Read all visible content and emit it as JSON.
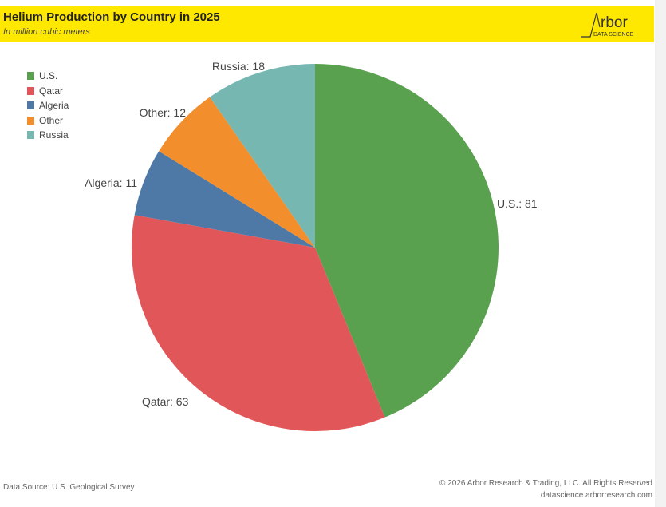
{
  "header": {
    "title": "Helium Production by Country in 2025",
    "subtitle": "In million cubic meters",
    "logo_text": "Arbor",
    "logo_sub": "DATA SCIENCE"
  },
  "chart_data": {
    "type": "pie",
    "title": "Helium Production by Country in 2025",
    "subtitle": "In million cubic meters",
    "categories": [
      "U.S.",
      "Qatar",
      "Algeria",
      "Other",
      "Russia"
    ],
    "values": [
      81,
      63,
      11,
      12,
      18
    ],
    "colors": [
      "#59a14f",
      "#e15759",
      "#4e79a7",
      "#f28e2b",
      "#76b7b2"
    ],
    "data_labels": [
      "U.S.: 81",
      "Qatar: 63",
      "Algeria: 11",
      "Other: 12",
      "Russia: 18"
    ],
    "legend_position": "top-left"
  },
  "footer": {
    "source": "Data Source: U.S. Geological Survey",
    "copyright": "© 2026 Arbor Research & Trading, LLC. All Rights Reserved",
    "website": "datascience.arborresearch.com"
  }
}
